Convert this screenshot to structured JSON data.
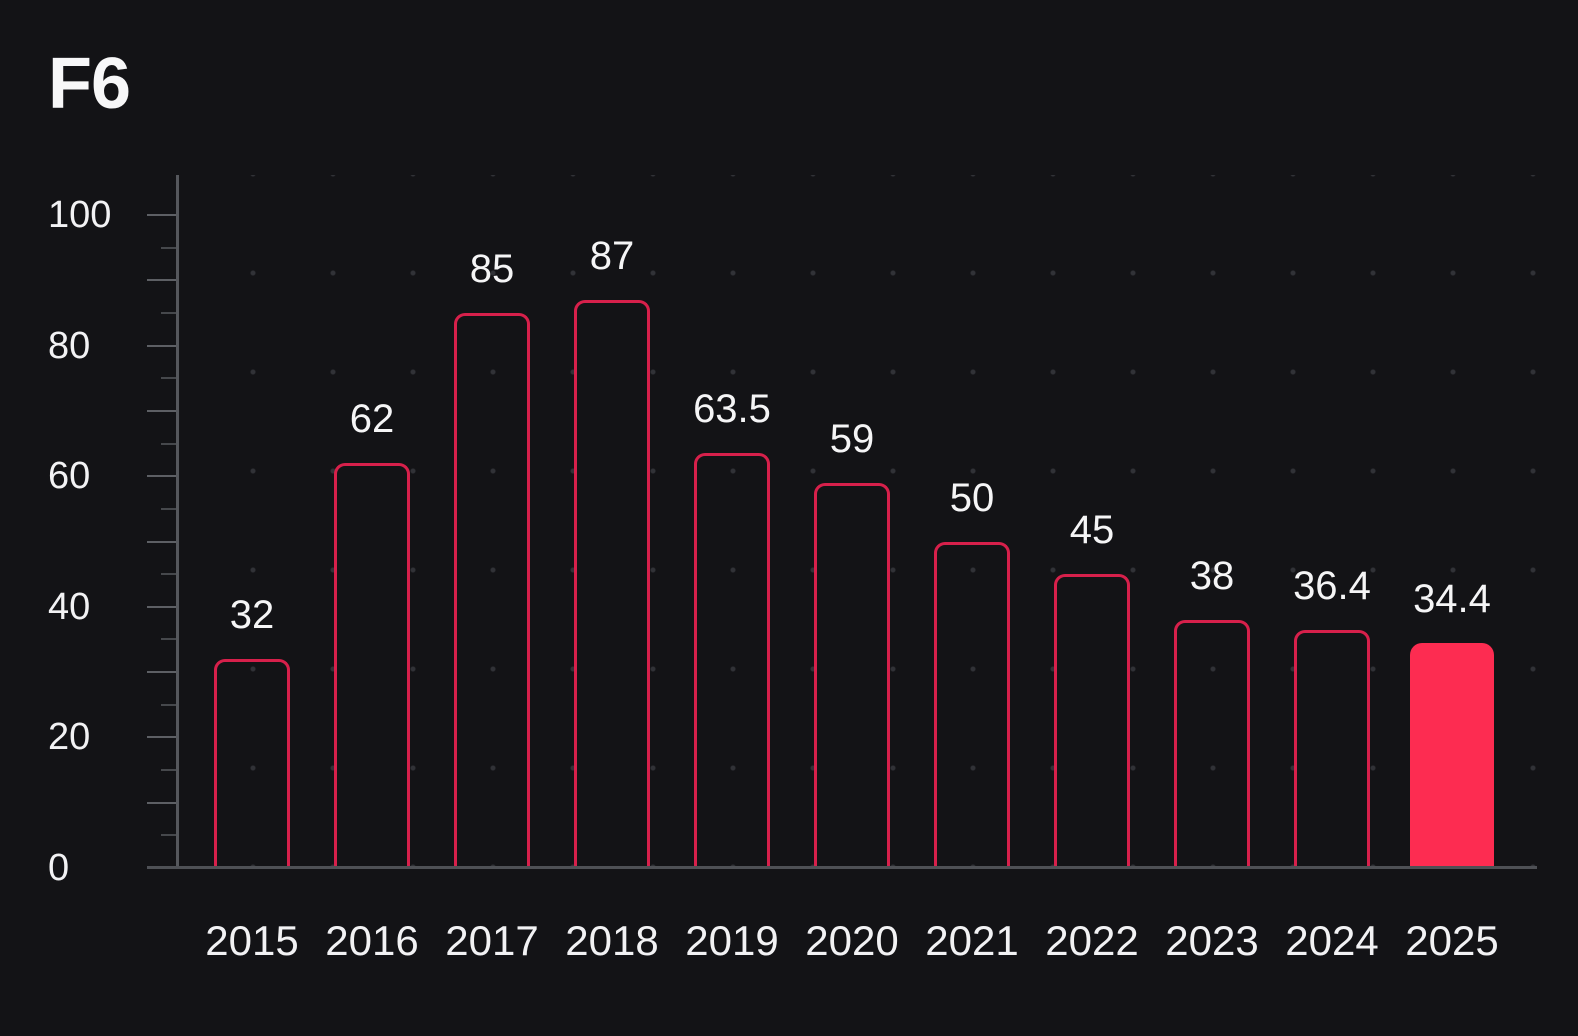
{
  "title": "F6",
  "chart_data": {
    "type": "bar",
    "title": "F6",
    "categories": [
      "2015",
      "2016",
      "2017",
      "2018",
      "2019",
      "2020",
      "2021",
      "2022",
      "2023",
      "2024",
      "2025"
    ],
    "values": [
      32,
      62,
      85,
      87,
      63.5,
      59,
      50,
      45,
      38,
      36.4,
      34.4
    ],
    "value_labels": [
      "32",
      "62",
      "85",
      "87",
      "63.5",
      "59",
      "50",
      "45",
      "38",
      "36.4",
      "34.4"
    ],
    "highlight_category": "2025",
    "highlight_index": 10,
    "xlabel": "",
    "ylabel": "",
    "ylim": [
      0,
      100
    ],
    "ytick_labels": [
      "0",
      "20",
      "40",
      "60",
      "80",
      "100"
    ],
    "ytick_label_values": [
      0,
      20,
      40,
      60,
      80,
      100
    ],
    "ytick_major_step": 10,
    "ytick_minor_step": 5,
    "grid": "dotted",
    "legend": null,
    "bar_style": "outlined",
    "highlight_style": "filled",
    "colors": {
      "background": "#131316",
      "bar_outline": "#d7204b",
      "bar_fill_highlight": "#fd2c51",
      "axis": "#55575c",
      "tick_major": "#5d5f64",
      "tick_minor": "#46484c",
      "text": "#f4f4f6",
      "grid_dot": "#313237"
    }
  }
}
